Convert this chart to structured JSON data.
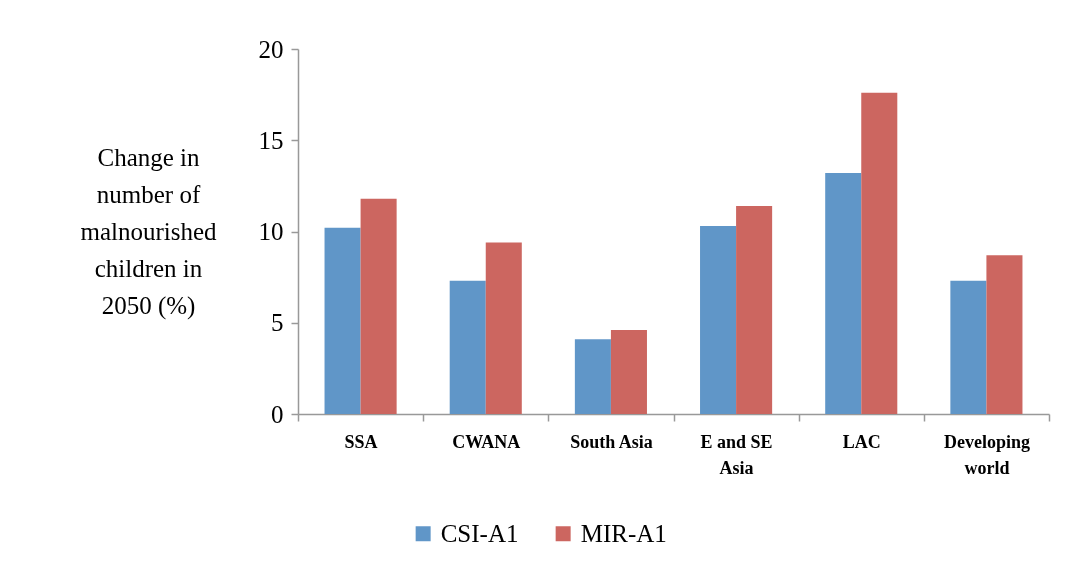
{
  "chart_data": {
    "type": "bar",
    "ylabel": "Change in number of malnourished children in 2050 (%)",
    "categories": [
      "SSA",
      "CWANA",
      "South Asia",
      "E and SE Asia",
      "LAC",
      "Developing world"
    ],
    "series": [
      {
        "name": "CSI-A1",
        "color": "#6096c8",
        "values": [
          10.2,
          7.3,
          4.1,
          10.3,
          13.2,
          7.3
        ]
      },
      {
        "name": "MIR-A1",
        "color": "#cc6660",
        "values": [
          11.8,
          9.4,
          4.6,
          11.4,
          17.6,
          8.7
        ]
      }
    ],
    "ylim": [
      0,
      20
    ],
    "yticks": [
      0,
      5,
      10,
      15,
      20
    ],
    "legend": "bottom"
  }
}
